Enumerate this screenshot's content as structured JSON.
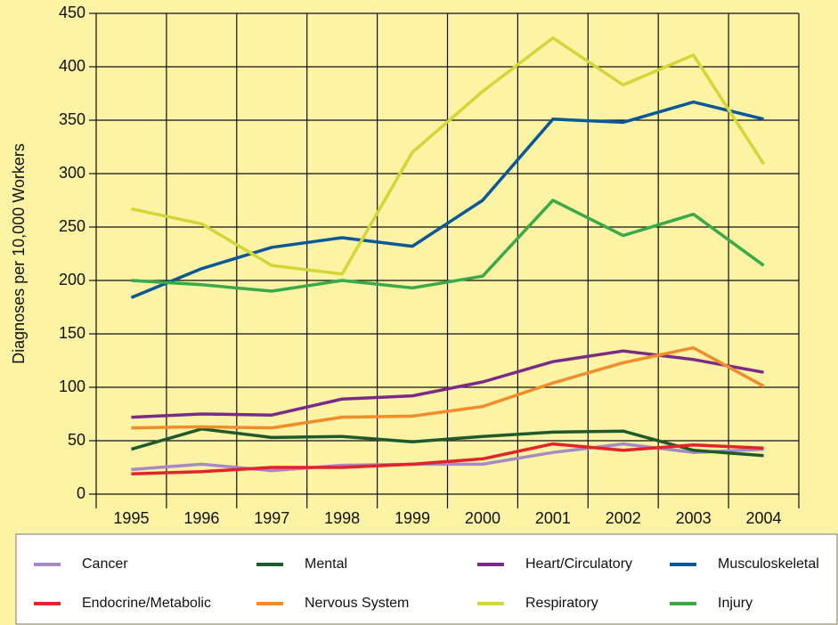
{
  "chart_data": {
    "type": "line",
    "y_label": "Diagnoses per 10,000 Workers",
    "categories": [
      "1995",
      "1996",
      "1997",
      "1998",
      "1999",
      "2000",
      "2001",
      "2002",
      "2003",
      "2004"
    ],
    "ylim": [
      0,
      450
    ],
    "yticks": [
      0,
      50,
      100,
      150,
      200,
      250,
      300,
      350,
      400,
      450
    ],
    "grid": true,
    "series": [
      {
        "name": "Cancer",
        "color": "#a58bc6",
        "values": [
          23,
          28,
          22,
          27,
          28,
          28,
          39,
          47,
          39,
          42
        ]
      },
      {
        "name": "Mental",
        "color": "#1f5a2c",
        "values": [
          42,
          61,
          53,
          54,
          49,
          54,
          58,
          59,
          41,
          36
        ]
      },
      {
        "name": "Heart/Circulatory",
        "color": "#7b2a88",
        "values": [
          72,
          75,
          74,
          89,
          92,
          105,
          124,
          134,
          126,
          114
        ]
      },
      {
        "name": "Musculoskeletal",
        "color": "#0b5899",
        "values": [
          184,
          211,
          231,
          240,
          232,
          275,
          351,
          348,
          367,
          351
        ]
      },
      {
        "name": "Endocrine/Metabolic",
        "color": "#e5222a",
        "values": [
          19,
          21,
          25,
          25,
          28,
          33,
          47,
          41,
          46,
          43
        ]
      },
      {
        "name": "Nervous System",
        "color": "#f28b2b",
        "values": [
          62,
          63,
          62,
          72,
          73,
          82,
          104,
          123,
          137,
          101
        ]
      },
      {
        "name": "Respiratory",
        "color": "#d2d636",
        "values": [
          267,
          253,
          214,
          206,
          320,
          377,
          427,
          383,
          411,
          309
        ]
      },
      {
        "name": "Injury",
        "color": "#3aa948",
        "values": [
          200,
          196,
          190,
          200,
          193,
          204,
          275,
          242,
          262,
          214
        ]
      }
    ]
  }
}
